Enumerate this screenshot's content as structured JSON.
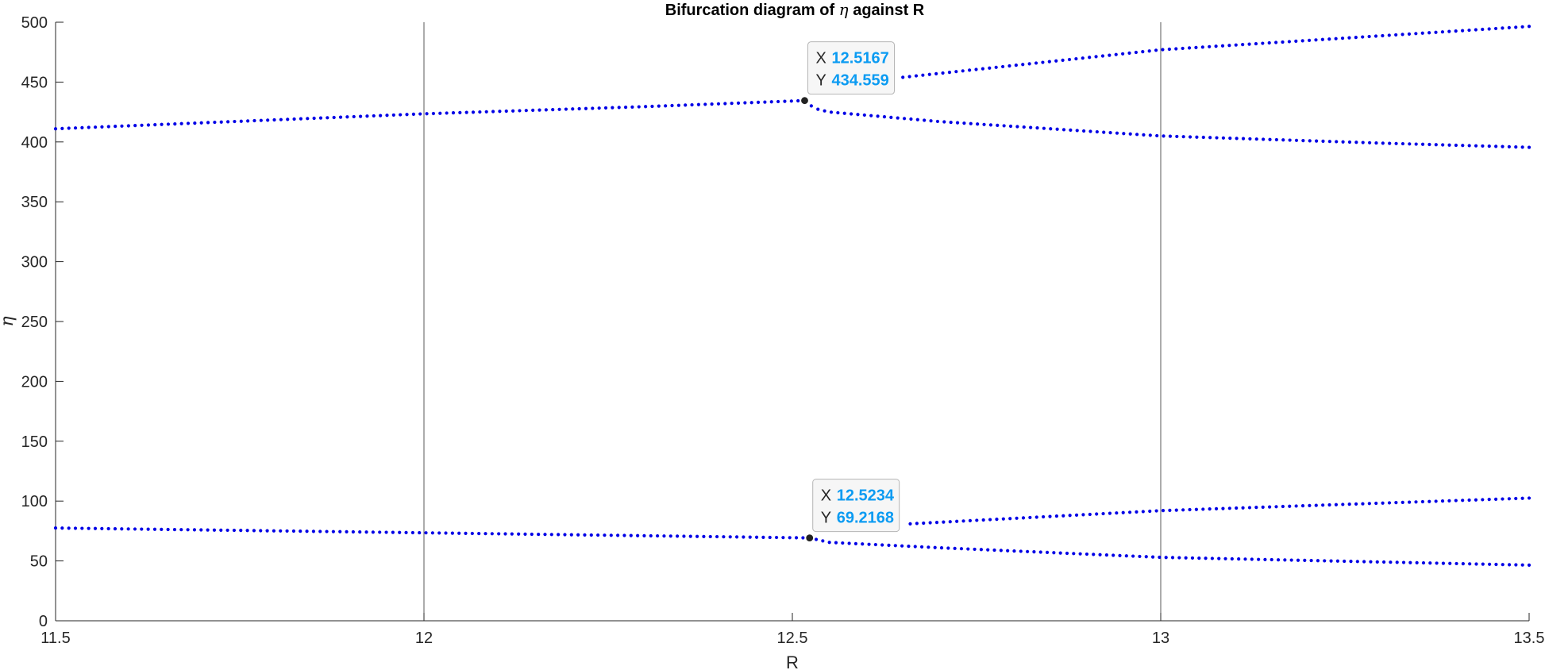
{
  "chart_data": {
    "type": "scatter",
    "title_prefix": "Bifurcation diagram of ",
    "title_symbol": "η",
    "title_suffix": " against R",
    "xlabel": "R",
    "ylabel": "η",
    "xlim": [
      11.5,
      13.5
    ],
    "ylim": [
      0,
      500
    ],
    "xticks": [
      11.5,
      12,
      12.5,
      13,
      13.5
    ],
    "xtick_labels": [
      "11.5",
      "12",
      "12.5",
      "13",
      "13.5"
    ],
    "yticks": [
      0,
      50,
      100,
      150,
      200,
      250,
      300,
      350,
      400,
      450,
      500
    ],
    "ytick_labels": [
      "0",
      "50",
      "100",
      "150",
      "200",
      "250",
      "300",
      "350",
      "400",
      "450",
      "500"
    ],
    "vertical_reference_lines": [
      12,
      13
    ],
    "marker_color": "#0000e6",
    "series": [
      {
        "points": [
          [
            11.5,
            411
          ],
          [
            12.0,
            423.5
          ],
          [
            12.3,
            429.5
          ],
          [
            12.5167,
            434.559
          ]
        ]
      },
      {
        "points": [
          [
            12.5167,
            434.559
          ],
          [
            12.53,
            428
          ],
          [
            12.55,
            425
          ],
          [
            12.7,
            417
          ],
          [
            13.0,
            405
          ],
          [
            13.3,
            399
          ],
          [
            13.5,
            395.5
          ]
        ]
      },
      {
        "points": [
          [
            12.65,
            454
          ],
          [
            13.0,
            477
          ],
          [
            13.5,
            496.5
          ]
        ]
      },
      {
        "points": [
          [
            11.5,
            77.5
          ],
          [
            12.0,
            73.5
          ],
          [
            12.5234,
            69.2168
          ]
        ]
      },
      {
        "points": [
          [
            12.5234,
            69.2168
          ],
          [
            12.55,
            65.5
          ],
          [
            12.7,
            61
          ],
          [
            13.0,
            53
          ],
          [
            13.5,
            46.5
          ]
        ]
      },
      {
        "points": [
          [
            12.66,
            81
          ],
          [
            13.0,
            92
          ],
          [
            13.5,
            102.5
          ]
        ]
      }
    ],
    "datatips": [
      {
        "x_label": "X",
        "x_value": "12.5167",
        "y_label": "Y",
        "y_value": "434.559",
        "x": 12.5167,
        "y": 434.559
      },
      {
        "x_label": "X",
        "x_value": "12.5234",
        "y_label": "Y",
        "y_value": "69.2168",
        "x": 12.5234,
        "y": 69.2168
      }
    ]
  }
}
